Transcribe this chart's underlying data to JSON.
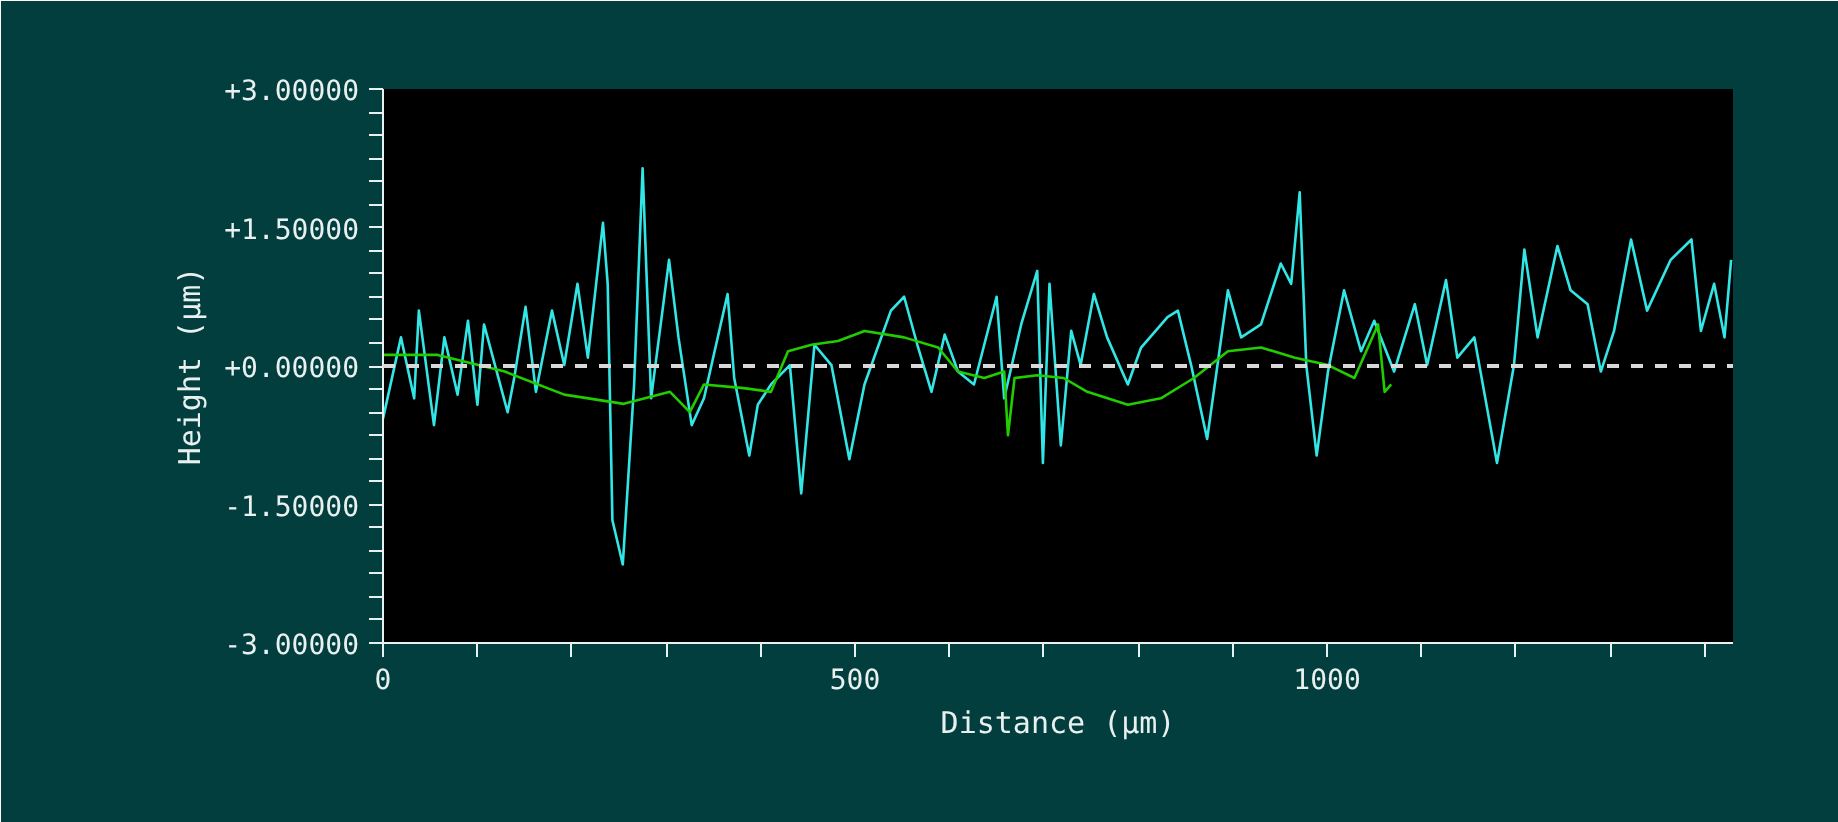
{
  "chart_data": {
    "type": "line",
    "xlabel": "Distance (µm)",
    "ylabel": "Height (µm)",
    "xlim": [
      0,
      1430
    ],
    "ylim": [
      -3,
      3
    ],
    "xticks": [
      0,
      {
        "value": 100,
        "label": null
      },
      {
        "value": 200,
        "label": null
      },
      {
        "value": 300,
        "label": null
      },
      {
        "value": 400,
        "label": null
      },
      500,
      {
        "value": 600,
        "label": null
      },
      {
        "value": 700,
        "label": null
      },
      {
        "value": 800,
        "label": null
      },
      {
        "value": 900,
        "label": null
      },
      1000,
      {
        "value": 1100,
        "label": null
      },
      {
        "value": 1200,
        "label": null
      },
      {
        "value": 1300,
        "label": null
      },
      {
        "value": 1400,
        "label": null
      }
    ],
    "yticks": [
      {
        "value": -3,
        "label": "-3.00000"
      },
      {
        "value": -2.75,
        "label": null
      },
      {
        "value": -2.5,
        "label": null
      },
      {
        "value": -2.25,
        "label": null
      },
      {
        "value": -2,
        "label": null
      },
      {
        "value": -1.75,
        "label": null
      },
      {
        "value": -1.5,
        "label": "-1.50000"
      },
      {
        "value": -1.25,
        "label": null
      },
      {
        "value": -1,
        "label": null
      },
      {
        "value": -0.75,
        "label": null
      },
      {
        "value": -0.5,
        "label": null
      },
      {
        "value": -0.25,
        "label": null
      },
      {
        "value": 0,
        "label": "+0.00000"
      },
      {
        "value": 0.25,
        "label": null
      },
      {
        "value": 0.5,
        "label": null
      },
      {
        "value": 0.75,
        "label": null
      },
      {
        "value": 1,
        "label": null
      },
      {
        "value": 1.25,
        "label": null
      },
      {
        "value": 1.5,
        "label": "+1.50000"
      },
      {
        "value": 1.75,
        "label": null
      },
      {
        "value": 2,
        "label": null
      },
      {
        "value": 2.25,
        "label": null
      },
      {
        "value": 2.5,
        "label": null
      },
      {
        "value": 2.75,
        "label": null
      },
      {
        "value": 3,
        "label": "+3.00000"
      }
    ],
    "grid": false,
    "marker": "none",
    "line_style": "solid",
    "ref_lines": [
      {
        "axis": "y",
        "value": 0,
        "label": null,
        "color": "#d8d8d8",
        "line_style": "dashed"
      }
    ],
    "series": [
      {
        "color": "#33e6e6",
        "x": [
          0,
          19,
          33,
          38,
          54,
          65,
          79,
          90,
          100,
          107,
          132,
          139,
          151,
          162,
          179,
          192,
          206,
          217,
          233,
          238,
          243,
          254,
          266,
          275,
          284,
          303,
          313,
          327,
          340,
          365,
          372,
          388,
          397,
          411,
          431,
          443,
          457,
          475,
          494,
          510,
          538,
          552,
          566,
          581,
          595,
          609,
          626,
          650,
          658,
          676,
          693,
          699,
          706,
          718,
          729,
          739,
          753,
          767,
          789,
          803,
          831,
          842,
          856,
          873,
          895,
          909,
          930,
          951,
          962,
          971,
          978,
          989,
          1001,
          1018,
          1036,
          1050,
          1071,
          1093,
          1106,
          1126,
          1138,
          1156,
          1180,
          1198,
          1209,
          1223,
          1244,
          1258,
          1276,
          1290,
          1304,
          1322,
          1339,
          1364,
          1386,
          1396,
          1410,
          1421,
          1428
        ],
        "values": [
          -0.57,
          0.31,
          -0.35,
          0.6,
          -0.64,
          0.31,
          -0.31,
          0.49,
          -0.42,
          0.45,
          -0.5,
          -0.13,
          0.64,
          -0.28,
          0.6,
          0.01,
          0.89,
          0.09,
          1.55,
          0.89,
          -1.67,
          -2.15,
          -0.2,
          2.14,
          -0.35,
          1.15,
          0.31,
          -0.64,
          -0.35,
          0.78,
          -0.13,
          -0.97,
          -0.42,
          -0.2,
          0.01,
          -1.38,
          0.23,
          0.01,
          -1.01,
          -0.2,
          0.6,
          0.75,
          0.23,
          -0.28,
          0.34,
          -0.06,
          -0.2,
          0.75,
          -0.35,
          0.45,
          1.03,
          -1.05,
          0.89,
          -0.86,
          0.38,
          0.01,
          0.78,
          0.31,
          -0.2,
          0.2,
          0.53,
          0.6,
          0.01,
          -0.79,
          0.82,
          0.31,
          0.45,
          1.11,
          0.89,
          1.88,
          0.01,
          -0.97,
          -0.06,
          0.82,
          0.16,
          0.49,
          -0.06,
          0.67,
          0.01,
          0.93,
          0.09,
          0.31,
          -1.05,
          0.01,
          1.26,
          0.31,
          1.3,
          0.82,
          0.67,
          -0.06,
          0.38,
          1.37,
          0.6,
          1.15,
          1.37,
          0.38,
          0.89,
          0.31,
          1.15
        ]
      },
      {
        "color": "#22cc00",
        "x": [
          0,
          58,
          129,
          192,
          255,
          304,
          325,
          340,
          382,
          411,
          429,
          454,
          482,
          510,
          552,
          588,
          609,
          637,
          658,
          662,
          669,
          693,
          721,
          746,
          789,
          824,
          859,
          895,
          930,
          966,
          1001,
          1029,
          1054,
          1061,
          1068
        ],
        "values": [
          0.12,
          0.12,
          -0.06,
          -0.31,
          -0.41,
          -0.28,
          -0.5,
          -0.2,
          -0.24,
          -0.28,
          0.16,
          0.23,
          0.27,
          0.38,
          0.31,
          0.2,
          -0.06,
          -0.13,
          -0.06,
          -0.75,
          -0.13,
          -0.1,
          -0.13,
          -0.28,
          -0.42,
          -0.35,
          -0.13,
          0.16,
          0.2,
          0.09,
          0.01,
          -0.13,
          0.45,
          -0.28,
          -0.2
        ]
      }
    ]
  }
}
